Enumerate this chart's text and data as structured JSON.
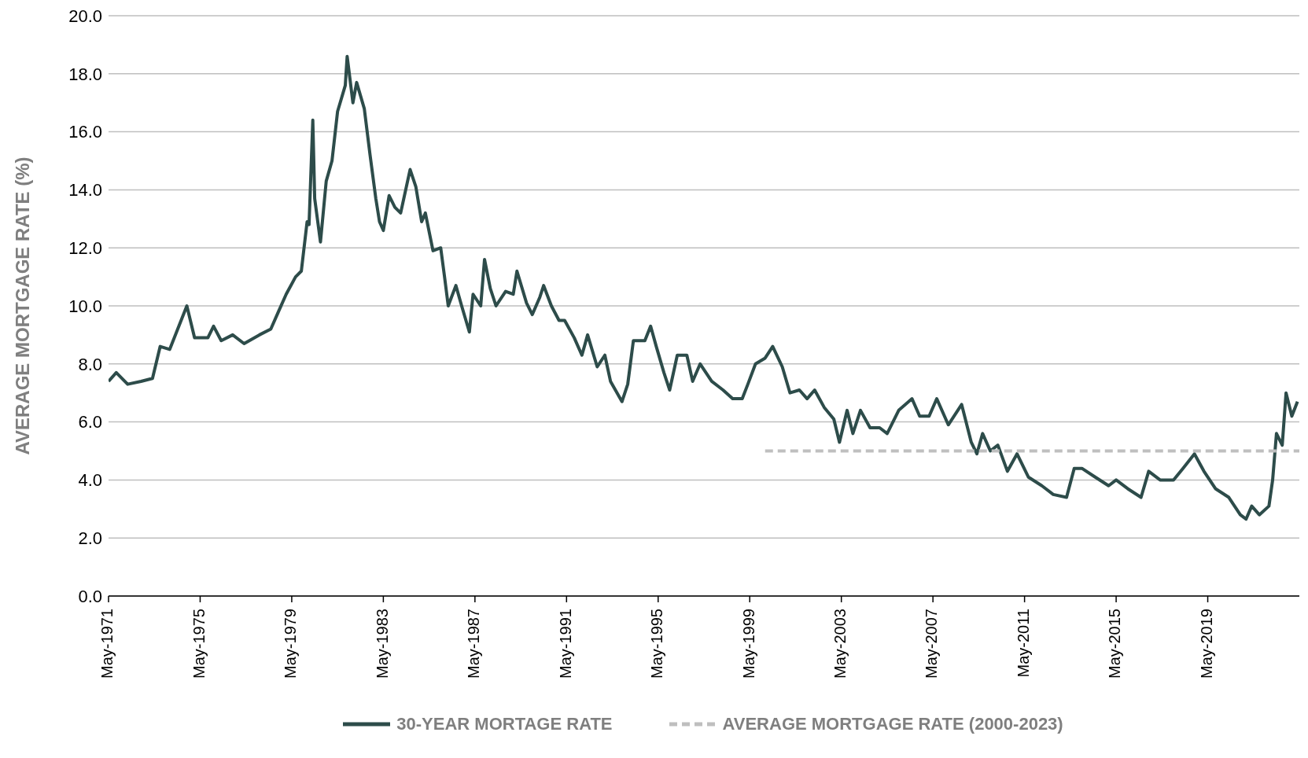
{
  "chart_data": {
    "type": "line",
    "ylabel": "AVERAGE MORTGAGE RATE (%)",
    "legend": "bottom",
    "grid": "y",
    "marker": "none",
    "xlim": [
      "1971-05",
      "2023-05"
    ],
    "xticks": [
      {
        "value": "1971-05",
        "label": "May-1971"
      },
      {
        "value": "1975-05",
        "label": "May-1975"
      },
      {
        "value": "1979-05",
        "label": "May-1979"
      },
      {
        "value": "1983-05",
        "label": "May-1983"
      },
      {
        "value": "1987-05",
        "label": "May-1987"
      },
      {
        "value": "1991-05",
        "label": "May-1991"
      },
      {
        "value": "1995-05",
        "label": "May-1995"
      },
      {
        "value": "1999-05",
        "label": "May-1999"
      },
      {
        "value": "2003-05",
        "label": "May-2003"
      },
      {
        "value": "2007-05",
        "label": "May-2007"
      },
      {
        "value": "2011-05",
        "label": "May-2011"
      },
      {
        "value": "2015-05",
        "label": "May-2015"
      },
      {
        "value": "2019-05",
        "label": "May-2019"
      }
    ],
    "ylim": [
      0,
      20
    ],
    "yticks": [
      {
        "value": 0,
        "label": "0.0"
      },
      {
        "value": 2,
        "label": "2.0"
      },
      {
        "value": 4,
        "label": "4.0"
      },
      {
        "value": 6,
        "label": "6.0"
      },
      {
        "value": 8,
        "label": "8.0"
      },
      {
        "value": 10,
        "label": "10.0"
      },
      {
        "value": 12,
        "label": "12.0"
      },
      {
        "value": 14,
        "label": "14.0"
      },
      {
        "value": 16,
        "label": "16.0"
      },
      {
        "value": 18,
        "label": "18.0"
      },
      {
        "value": 20,
        "label": "20.0"
      }
    ],
    "series": [
      {
        "name": "30-YEAR MORTAGE RATE",
        "color": "#2d4c4a",
        "line_style": "solid",
        "x": [
          "1971-05",
          "1971-09",
          "1972-03",
          "1972-10",
          "1973-04",
          "1973-08",
          "1974-01",
          "1974-10",
          "1975-02",
          "1975-09",
          "1975-12",
          "1976-04",
          "1976-10",
          "1977-04",
          "1977-12",
          "1978-06",
          "1978-10",
          "1979-02",
          "1979-07",
          "1979-10",
          "1980-01",
          "1980-02",
          "1980-04",
          "1980-05",
          "1980-08",
          "1980-11",
          "1981-02",
          "1981-05",
          "1981-09",
          "1981-10",
          "1982-01",
          "1982-03",
          "1982-07",
          "1982-10",
          "1983-01",
          "1983-03",
          "1983-05",
          "1983-08",
          "1983-11",
          "1984-02",
          "1984-07",
          "1984-10",
          "1985-01",
          "1985-03",
          "1985-07",
          "1985-11",
          "1986-01",
          "1986-03",
          "1986-07",
          "1986-10",
          "1987-02",
          "1987-04",
          "1987-08",
          "1987-10",
          "1988-01",
          "1988-04",
          "1988-09",
          "1989-01",
          "1989-03",
          "1989-08",
          "1989-11",
          "1990-03",
          "1990-05",
          "1990-09",
          "1991-01",
          "1991-04",
          "1991-09",
          "1992-01",
          "1992-04",
          "1992-09",
          "1993-01",
          "1993-04",
          "1993-10",
          "1994-01",
          "1994-04",
          "1994-10",
          "1995-01",
          "1995-04",
          "1995-08",
          "1995-11",
          "1996-03",
          "1996-08",
          "1996-11",
          "1997-03",
          "1997-09",
          "1998-03",
          "1998-08",
          "1999-01",
          "1999-04",
          "1999-08",
          "2000-01",
          "2000-05",
          "2000-10",
          "2001-02",
          "2001-07",
          "2001-11",
          "2002-03",
          "2002-08",
          "2003-01",
          "2003-04",
          "2003-08",
          "2003-11",
          "2004-03",
          "2004-08",
          "2005-01",
          "2005-05",
          "2005-11",
          "2006-06",
          "2006-10",
          "2007-03",
          "2007-07",
          "2008-01",
          "2008-08",
          "2009-01",
          "2009-04",
          "2009-07",
          "2009-11",
          "2010-03",
          "2010-08",
          "2011-01",
          "2011-07",
          "2012-02",
          "2012-08",
          "2013-03",
          "2013-07",
          "2013-11",
          "2014-06",
          "2015-01",
          "2015-05",
          "2015-11",
          "2016-06",
          "2016-10",
          "2017-04",
          "2017-11",
          "2018-04",
          "2018-10",
          "2019-03",
          "2019-09",
          "2020-04",
          "2020-10",
          "2021-01",
          "2021-04",
          "2021-08",
          "2022-01",
          "2022-03",
          "2022-05",
          "2022-08",
          "2022-10",
          "2023-01",
          "2023-04"
        ],
        "values": [
          7.4,
          7.7,
          7.3,
          7.4,
          7.5,
          8.6,
          8.5,
          10.0,
          8.9,
          8.9,
          9.3,
          8.8,
          9.0,
          8.7,
          9.0,
          9.2,
          9.8,
          10.4,
          11.0,
          11.2,
          12.9,
          12.8,
          16.4,
          13.7,
          12.2,
          14.3,
          15.0,
          16.7,
          17.6,
          18.6,
          17.0,
          17.7,
          16.8,
          15.2,
          13.7,
          12.9,
          12.6,
          13.8,
          13.4,
          13.2,
          14.7,
          14.1,
          12.9,
          13.2,
          11.9,
          12.0,
          11.0,
          10.0,
          10.7,
          10.0,
          9.1,
          10.4,
          10.0,
          11.6,
          10.6,
          10.0,
          10.5,
          10.4,
          11.2,
          10.1,
          9.7,
          10.3,
          10.7,
          10.0,
          9.5,
          9.5,
          8.9,
          8.3,
          9.0,
          7.9,
          8.3,
          7.4,
          6.7,
          7.3,
          8.8,
          8.8,
          9.3,
          8.6,
          7.7,
          7.1,
          8.3,
          8.3,
          7.4,
          8.0,
          7.4,
          7.1,
          6.8,
          6.8,
          7.3,
          8.0,
          8.2,
          8.6,
          7.9,
          7.0,
          7.1,
          6.8,
          7.1,
          6.5,
          6.1,
          5.3,
          6.4,
          5.6,
          6.4,
          5.8,
          5.8,
          5.6,
          6.4,
          6.8,
          6.2,
          6.2,
          6.8,
          5.9,
          6.6,
          5.3,
          4.9,
          5.6,
          5.0,
          5.2,
          4.3,
          4.9,
          4.1,
          3.8,
          3.5,
          3.4,
          4.4,
          4.4,
          4.1,
          3.8,
          4.0,
          3.7,
          3.4,
          4.3,
          4.0,
          4.0,
          4.4,
          4.9,
          4.3,
          3.7,
          3.4,
          2.8,
          2.65,
          3.1,
          2.8,
          3.1,
          4.0,
          5.6,
          5.2,
          7.0,
          6.2,
          6.7
        ]
      },
      {
        "name": "AVERAGE MORTGAGE RATE (2000-2023)",
        "type": "line",
        "color": "#bfbfbf",
        "line_style": "dashed",
        "x": [
          "2000-01",
          "2023-05"
        ],
        "values": [
          5.0,
          5.0
        ]
      }
    ]
  }
}
